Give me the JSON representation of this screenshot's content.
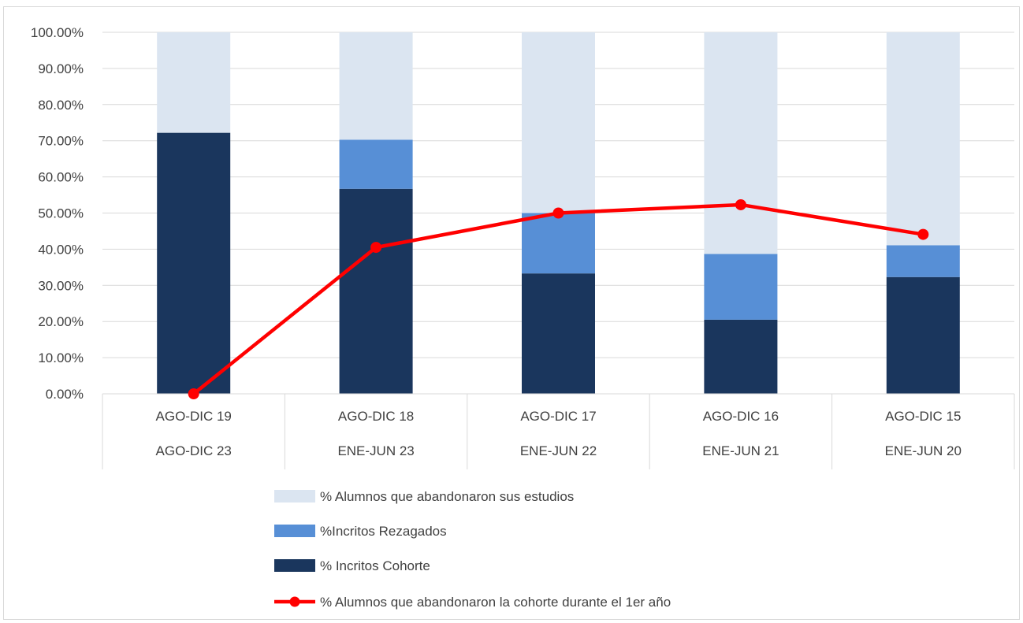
{
  "chart_data": {
    "type": "bar",
    "stacked": true,
    "title": "",
    "xlabel": "",
    "ylabel": "",
    "ylim": [
      0,
      100
    ],
    "y_ticks": [
      "0.00%",
      "10.00%",
      "20.00%",
      "30.00%",
      "40.00%",
      "50.00%",
      "60.00%",
      "70.00%",
      "80.00%",
      "90.00%",
      "100.00%"
    ],
    "grid": true,
    "legend_position": "bottom",
    "categories_level1": [
      "AGO-DIC 19",
      "AGO-DIC 18",
      "AGO-DIC 17",
      "AGO-DIC 16",
      "AGO-DIC 15"
    ],
    "categories_level2": [
      "AGO-DIC 23",
      "ENE-JUN 23",
      "ENE-JUN 22",
      "ENE-JUN 21",
      "ENE-JUN 20"
    ],
    "series": [
      {
        "name": "% Incritos Cohorte",
        "type": "bar",
        "color": "#1a365d",
        "values": [
          72.2,
          56.7,
          33.3,
          20.5,
          32.3
        ]
      },
      {
        "name": "%Incritos Rezagados",
        "type": "bar",
        "color": "#578fd6",
        "values": [
          0,
          13.6,
          16.7,
          18.2,
          8.8
        ]
      },
      {
        "name": "% Alumnos que abandonaron sus estudios",
        "type": "bar",
        "color": "#dbe5f1",
        "values": [
          27.8,
          29.7,
          50.0,
          61.3,
          58.9
        ]
      },
      {
        "name": "% Alumnos que abandonaron la cohorte durante el 1er año",
        "type": "line",
        "color": "#ff0000",
        "values": [
          0.0,
          40.5,
          50.0,
          52.3,
          44.1
        ]
      }
    ],
    "legend_order": [
      "% Alumnos que abandonaron sus estudios",
      "%Incritos Rezagados",
      "% Incritos Cohorte",
      "% Alumnos que abandonaron la cohorte durante el 1er año"
    ]
  }
}
